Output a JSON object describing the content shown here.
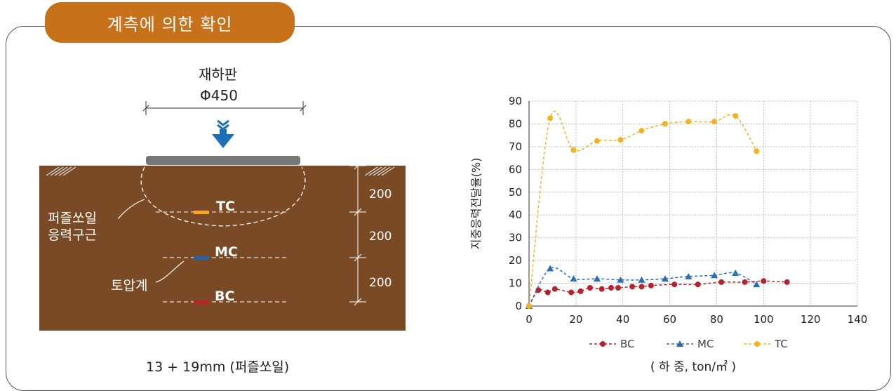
{
  "title": "계측에 의한 확인",
  "diagram": {
    "plate_label": "재하판",
    "plate_dim": "Φ450",
    "depths": [
      "200",
      "200",
      "200"
    ],
    "zone_label_1": "퍼즐쏘일",
    "zone_label_2": "응력구근",
    "gauge_label": "토압계",
    "gauges": [
      {
        "name": "TC",
        "color": "#f5a623"
      },
      {
        "name": "MC",
        "color": "#2266aa"
      },
      {
        "name": "BC",
        "color": "#c0202a"
      }
    ],
    "caption": "13 + 19mm (퍼즐쏘일)",
    "colors": {
      "soil": "#7a4a26",
      "arrow": "#1a6fb8",
      "plate": "#777777",
      "title_bg": "#c8711b"
    }
  },
  "chart_data": {
    "type": "line",
    "ylabel": "지중응력전달율(%)",
    "xlabel": "( 하 중, ton/㎡ )",
    "xlim": [
      0,
      140
    ],
    "ylim": [
      0,
      90
    ],
    "xticks": [
      "0",
      "20",
      "40",
      "60",
      "80",
      "100",
      "120",
      "140"
    ],
    "yticks": [
      "0",
      "10",
      "20",
      "30",
      "40",
      "50",
      "60",
      "70",
      "80",
      "90"
    ],
    "grid": true,
    "legend": "bottom",
    "series": [
      {
        "name": "BC",
        "color": "#b5222b",
        "marker": "circle",
        "x": [
          0,
          4,
          8,
          11,
          18,
          22,
          26,
          31,
          35,
          38,
          44,
          48,
          52,
          62,
          72,
          82,
          92,
          100,
          110
        ],
        "y": [
          0,
          7,
          6,
          7.5,
          6,
          6.5,
          8,
          7.5,
          8,
          8,
          8.5,
          8.5,
          9,
          9.5,
          9.5,
          10.5,
          10.5,
          11,
          10.5
        ]
      },
      {
        "name": "MC",
        "color": "#2a6db5",
        "marker": "triangle",
        "x": [
          0,
          9,
          19,
          29,
          39,
          48,
          58,
          68,
          79,
          88,
          97
        ],
        "y": [
          0,
          16.5,
          12,
          12,
          11.5,
          11.5,
          12,
          13,
          13.5,
          14.5,
          9.5
        ]
      },
      {
        "name": "TC",
        "color": "#f0b323",
        "marker": "circle",
        "x": [
          0,
          9,
          19,
          29,
          39,
          48,
          58,
          68,
          79,
          88,
          97
        ],
        "y": [
          0,
          82.5,
          68.5,
          72.5,
          73,
          77,
          80,
          81,
          81,
          83.5,
          68
        ]
      }
    ]
  }
}
